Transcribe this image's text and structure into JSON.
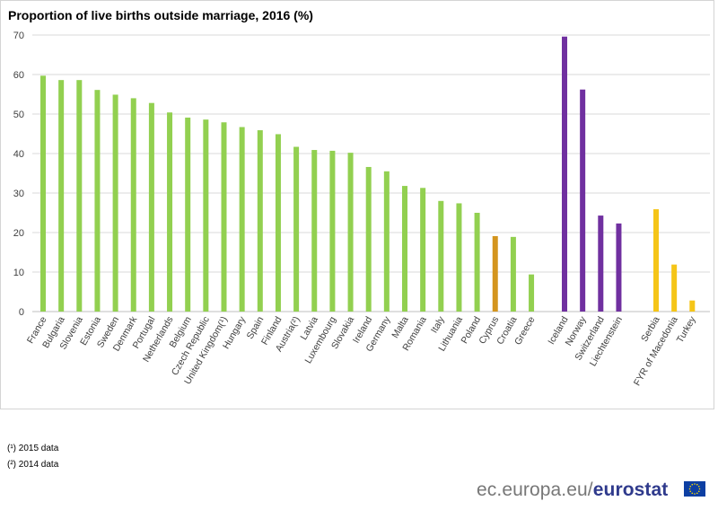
{
  "notes": [
    "(¹) 2015 data",
    "(²) 2014 data"
  ],
  "brand": {
    "url": "ec.europa.eu/",
    "name": "eurostat"
  },
  "colors": {
    "eu": "#92d050",
    "eu_highlight": "#d4951e",
    "efta": "#7030a0",
    "candidates": "#f5c518",
    "grid": "#d9d9d9"
  },
  "chart_data": {
    "type": "bar",
    "title": "Proportion of live births outside marriage, 2016 (%)",
    "xlabel": "",
    "ylabel": "",
    "ylim": [
      0,
      70
    ],
    "yticks": [
      0,
      10,
      20,
      30,
      40,
      50,
      60,
      70
    ],
    "grid": true,
    "groups": [
      {
        "categories": [
          "France",
          "Bulgaria",
          "Slovenia",
          "Estonia",
          "Sweden",
          "Denmark",
          "Portugal",
          "Netherlands",
          "Belgium",
          "Czech Republic",
          "United Kingdom(¹)",
          "Hungary",
          "Spain",
          "Finland",
          "Austria(²)",
          "Latvia",
          "Luxembourg",
          "Slovakia",
          "Ireland",
          "Germany",
          "Malta",
          "Romania",
          "Italy",
          "Lithuania",
          "Poland",
          "Cyprus",
          "Croatia",
          "Greece"
        ],
        "values": [
          59.7,
          58.6,
          58.6,
          56.1,
          54.9,
          54.0,
          52.8,
          50.4,
          49.1,
          48.6,
          47.9,
          46.7,
          45.9,
          44.9,
          41.7,
          40.9,
          40.7,
          40.2,
          36.6,
          35.5,
          31.8,
          31.3,
          28.0,
          27.4,
          25.0,
          19.1,
          18.9,
          9.4
        ],
        "colors": [
          "#92d050",
          "#92d050",
          "#92d050",
          "#92d050",
          "#92d050",
          "#92d050",
          "#92d050",
          "#92d050",
          "#92d050",
          "#92d050",
          "#92d050",
          "#92d050",
          "#92d050",
          "#92d050",
          "#92d050",
          "#92d050",
          "#92d050",
          "#92d050",
          "#92d050",
          "#92d050",
          "#92d050",
          "#92d050",
          "#92d050",
          "#92d050",
          "#92d050",
          "#d4951e",
          "#92d050",
          "#92d050"
        ]
      },
      {
        "categories": [
          "Iceland",
          "Norway",
          "Switzerland",
          "Liechtenstein"
        ],
        "values": [
          69.6,
          56.2,
          24.3,
          22.3
        ],
        "colors": [
          "#7030a0",
          "#7030a0",
          "#7030a0",
          "#7030a0"
        ]
      },
      {
        "categories": [
          "Serbia",
          "FYR of Macedonia",
          "Turkey"
        ],
        "values": [
          25.9,
          11.9,
          2.8
        ],
        "colors": [
          "#f5c518",
          "#f5c518",
          "#f5c518"
        ]
      }
    ]
  }
}
